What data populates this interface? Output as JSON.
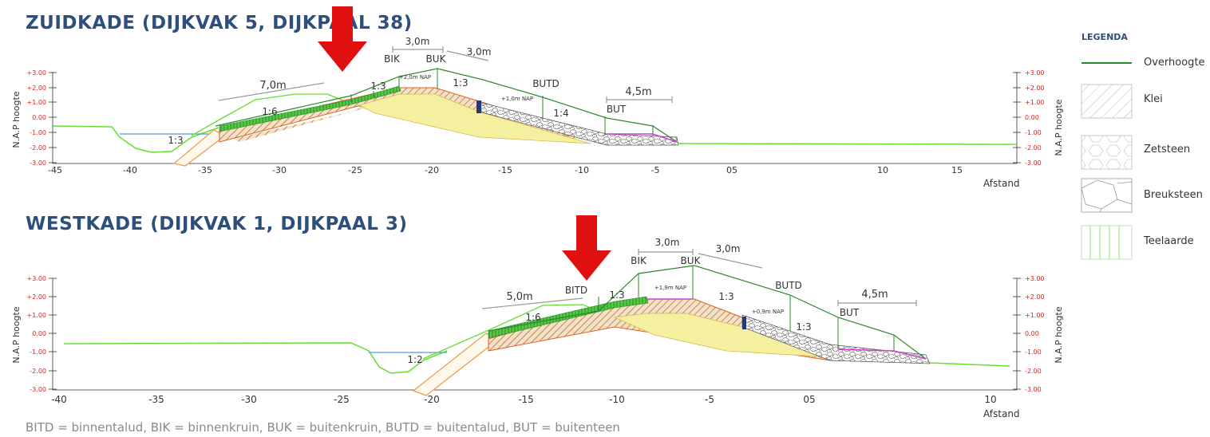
{
  "section1": {
    "title": "ZUIDKADE (DIJKVAK 5, DIJKPAAL 38)",
    "y_axis_label": "N.A.P hoogte",
    "x_axis_label": "Afstand",
    "y_ticks": [
      "+3.00",
      "+2.00",
      "+1.00",
      "0.00",
      "-1.00",
      "-2.00",
      "-3.00"
    ],
    "x_ticks": [
      "-45",
      "-40",
      "-35",
      "-30",
      "-25",
      "-20",
      "-15",
      "-10",
      "-5",
      "05",
      "10",
      "15"
    ],
    "dims": [
      "3,0m",
      "3,0m",
      "7,0m",
      "4,5m"
    ],
    "point_labels": [
      "BIK",
      "BUK",
      "BUTD",
      "BUT"
    ],
    "slopes": [
      "1:3",
      "1:6",
      "1:3",
      "1:3",
      "1:4"
    ],
    "levels": [
      "+2,0m NAP",
      "+1,0m NAP"
    ]
  },
  "section2": {
    "title": "WESTKADE (DIJKVAK 1, DIJKPAAL 3)",
    "y_axis_label": "N.A.P hoogte",
    "x_axis_label": "Afstand",
    "y_ticks": [
      "+3.00",
      "+2.00",
      "+1.00",
      "0.00",
      "-1.00",
      "-2.00",
      "-3.00"
    ],
    "x_ticks": [
      "-40",
      "-35",
      "-30",
      "-25",
      "-20",
      "-15",
      "-10",
      "-5",
      "05",
      "10"
    ],
    "dims": [
      "3,0m",
      "3,0m",
      "5,0m",
      "4,5m"
    ],
    "point_labels": [
      "BIK",
      "BUK",
      "BUTD",
      "BUT",
      "BITD"
    ],
    "slopes": [
      "1:3",
      "1:6",
      "1:2",
      "1:3",
      "1:3"
    ],
    "levels": [
      "+1,9m NAP",
      "+0,9m NAP"
    ]
  },
  "legend": {
    "title": "LEGENDA",
    "items": [
      "Overhoogte",
      "Klei",
      "Zetsteen",
      "Breuksteen",
      "Teelaarde"
    ]
  },
  "footer": "BITD = binnentalud, BIK = binnenkruin, BUK = buitenkruin, BUTD = buitentalud, BUT = buitenteen",
  "colors": {
    "title": "#2e4f7b",
    "arrow": "#e01010",
    "overhoogte": "#2a8a2a",
    "teelaarde": "#66dd33",
    "klei_fill": "#f5efa0",
    "water": "#5599dd",
    "tick_red": "#e02020"
  }
}
